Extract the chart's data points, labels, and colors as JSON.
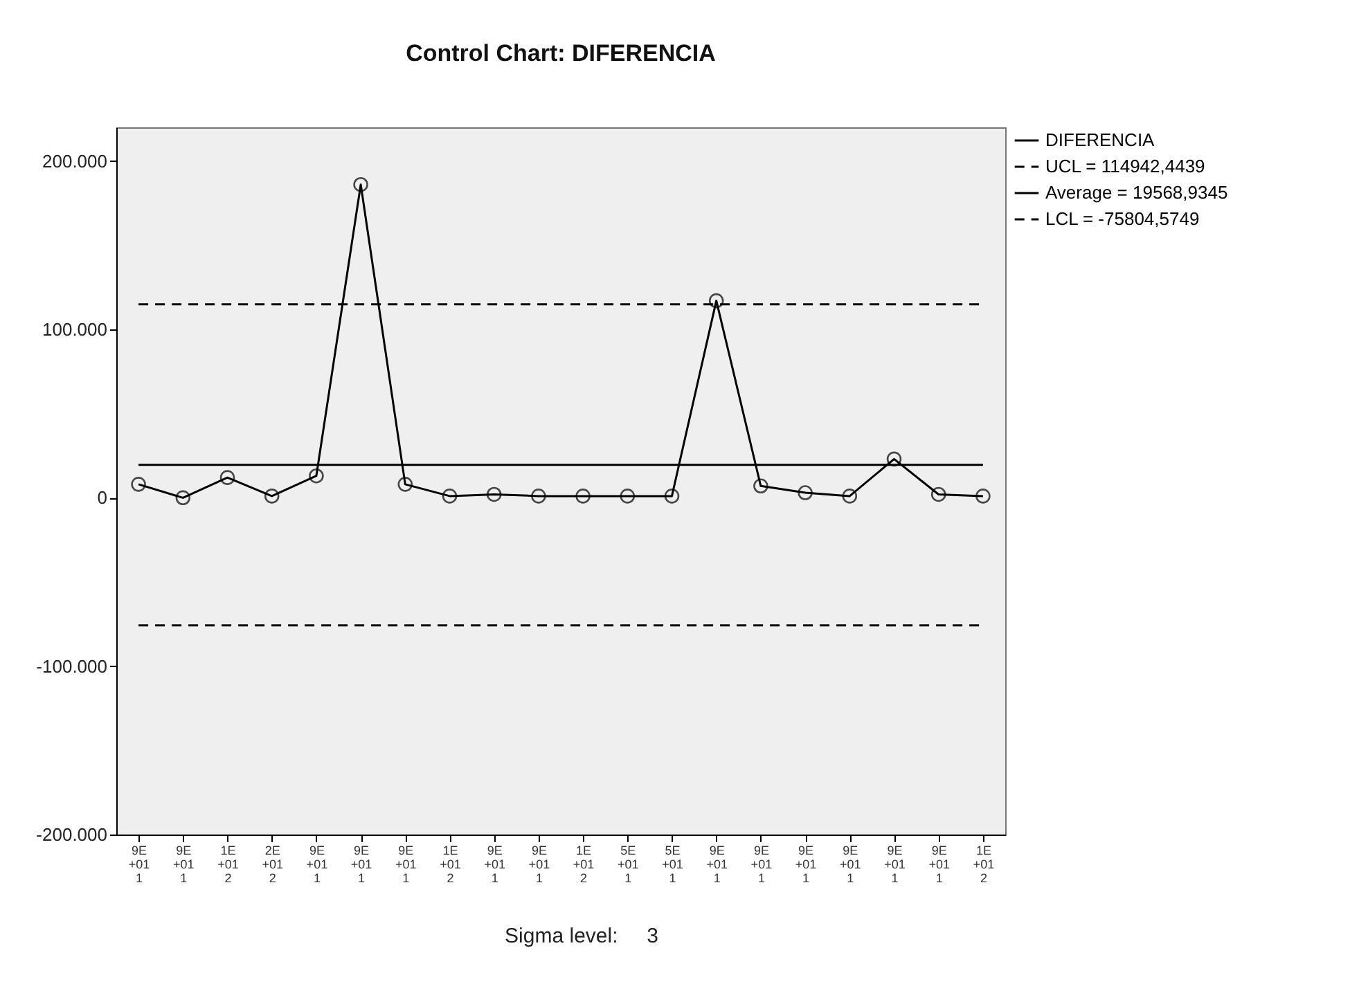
{
  "chart_data": {
    "type": "line",
    "title": "Control Chart: DIFERENCIA",
    "categories": [
      "9E+011",
      "9E+011",
      "1E+012",
      "2E+012",
      "9E+011",
      "9E+011",
      "9E+011",
      "1E+012",
      "9E+011",
      "9E+011",
      "1E+012",
      "5E+011",
      "5E+011",
      "9E+011",
      "9E+011",
      "9E+011",
      "9E+011",
      "9E+011",
      "9E+011",
      "1E+012"
    ],
    "series": [
      {
        "name": "DIFERENCIA",
        "color": "#000000",
        "values": [
          8000,
          0,
          12000,
          1000,
          13000,
          186000,
          8000,
          1000,
          2000,
          1000,
          1000,
          1000,
          1000,
          117000,
          7000,
          3000,
          1000,
          23000,
          2000,
          1000
        ]
      }
    ],
    "ylim": [
      -200000,
      220000
    ],
    "yticks": [
      {
        "value": -200000,
        "label": "-200.000"
      },
      {
        "value": -100000,
        "label": "-100.000"
      },
      0,
      {
        "value": 100000,
        "label": "100.000"
      },
      {
        "value": 200000,
        "label": "200.000"
      }
    ],
    "ref_lines": [
      {
        "axis": "y",
        "value": 114942.4439,
        "label": "UCL = 114942,4439",
        "color": "#000000",
        "line_style": "dashed"
      },
      {
        "axis": "y",
        "value": 19568.9345,
        "label": "Average = 19568,9345",
        "color": "#000000",
        "line_style": "solid"
      },
      {
        "axis": "y",
        "value": -75804.5749,
        "label": "LCL = -75804,5749",
        "color": "#000000",
        "line_style": "dashed"
      }
    ],
    "marker": "circle",
    "line_style": "solid",
    "legend": "top right",
    "grid": false,
    "annotations": [
      "Sigma level:     3"
    ]
  }
}
